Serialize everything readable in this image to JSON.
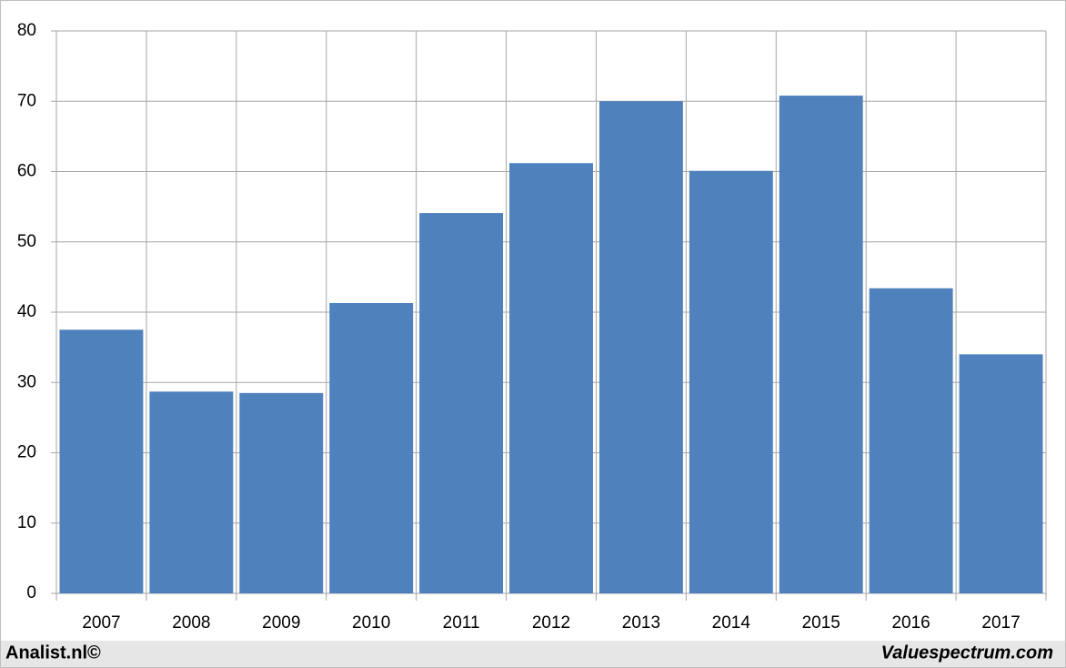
{
  "chart_data": {
    "type": "bar",
    "categories": [
      "2007",
      "2008",
      "2009",
      "2010",
      "2011",
      "2012",
      "2013",
      "2014",
      "2015",
      "2016",
      "2017"
    ],
    "values": [
      37.5,
      28.7,
      28.5,
      41.3,
      54.1,
      61.2,
      70.0,
      60.1,
      70.8,
      43.4,
      34.0
    ],
    "color": "#4f81bd",
    "ylim": [
      0,
      80
    ],
    "yticks": [
      0,
      10,
      20,
      30,
      40,
      50,
      60,
      70,
      80
    ],
    "grid": true
  },
  "footer": {
    "left": "Analist.nl©",
    "right": "Valuespectrum.com"
  }
}
